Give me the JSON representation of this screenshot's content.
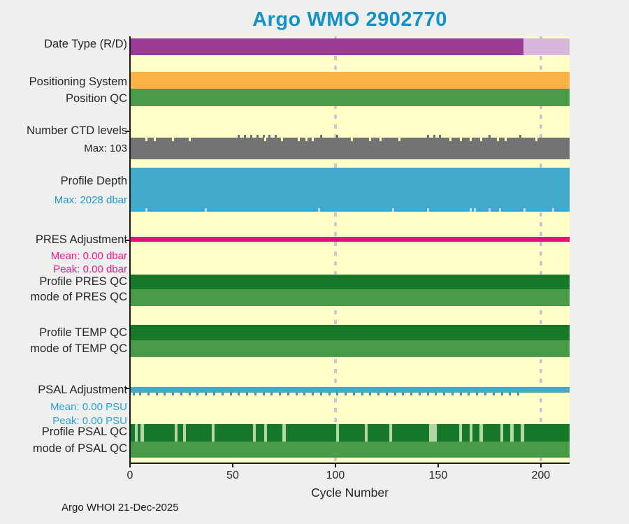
{
  "title": {
    "text": "Argo WMO 2902770",
    "color": "#1492c8"
  },
  "footer": {
    "text": "Argo WHOI 21-Dec-2025"
  },
  "chart_data": {
    "type": "status-timeline",
    "title": "Argo WMO 2902770",
    "xlabel": "Cycle Number",
    "xlim": [
      0,
      214
    ],
    "xticks": [
      0,
      50,
      100,
      150,
      200
    ],
    "gridlines_x": [
      100,
      200
    ],
    "grid_color": "#c9c9d1",
    "plot_bg": "#ffffc8",
    "axis_color": "#1a1a1a",
    "rows": [
      {
        "id": "date_type",
        "label": "Date Type (R/D)",
        "kind": "segments",
        "segments": [
          {
            "from": 0,
            "to": 191.5,
            "color": "#9c3a98"
          },
          {
            "from": 191.5,
            "to": 214,
            "color": "#d9b6dc"
          }
        ]
      },
      {
        "id": "positioning_system",
        "label": "Positioning System",
        "kind": "band",
        "color": "#fbb343"
      },
      {
        "id": "position_qc",
        "label": "Position QC",
        "kind": "band",
        "color": "#4a9a47"
      },
      {
        "id": "ctd_levels",
        "label": "Number CTD levels",
        "sublabel": {
          "text": "Max: 103",
          "color": "#262626"
        },
        "kind": "band",
        "color": "#737373",
        "notch_edge": "top",
        "notch_color": "#ffffc8",
        "notch_cycles": [
          8,
          12,
          21,
          29,
          66,
          74,
          82,
          86,
          89,
          108,
          117,
          122,
          131,
          156,
          161,
          166,
          171,
          179,
          183,
          198
        ],
        "nub_cycles": [
          53,
          56,
          59,
          62,
          65,
          68,
          71,
          93,
          101,
          145,
          148,
          151,
          175,
          190
        ]
      },
      {
        "id": "profile_depth",
        "label": "Profile Depth",
        "sublabel": {
          "text": "Max: 2028 dbar",
          "color": "#2095c9"
        },
        "kind": "band",
        "color": "#43a9c9",
        "notch_edge": "bottom",
        "notch_color": "#b8dcea",
        "notch_cycles": [
          8,
          37,
          92,
          128,
          145,
          166,
          168,
          175,
          180,
          192,
          206
        ]
      },
      {
        "id": "pres_adjustment",
        "label": "PRES Adjustment",
        "sublabels": [
          {
            "text": "Mean: 0.00 dbar",
            "color": "#ed168d"
          },
          {
            "text": "Peak: 0.00 dbar",
            "color": "#ed168d"
          }
        ],
        "kind": "line",
        "color": "#ec0e72"
      },
      {
        "id": "profile_pres_qc",
        "label": "Profile PRES QC",
        "kind": "band",
        "color": "#17782a"
      },
      {
        "id": "mode_pres_qc",
        "label": "mode of PRES QC",
        "kind": "band",
        "color": "#4a9a47"
      },
      {
        "id": "profile_temp_qc",
        "label": "Profile TEMP QC",
        "kind": "band",
        "color": "#17782a"
      },
      {
        "id": "mode_temp_qc",
        "label": "mode of TEMP QC",
        "kind": "band",
        "color": "#4a9a47"
      },
      {
        "id": "psal_adjustment",
        "label": "PSAL Adjustment",
        "sublabels": [
          {
            "text": "Mean: 0.00 PSU",
            "color": "#2ba0d8"
          },
          {
            "text": "Peak: 0.00 PSU",
            "color": "#2ba0d8"
          }
        ],
        "kind": "line",
        "color": "#43a9c9",
        "tick_color": "#3b93b5",
        "tick_cycles": [
          2,
          5,
          9,
          13,
          17,
          21,
          25,
          29,
          33,
          37,
          41,
          45,
          49,
          53,
          57,
          61,
          65,
          69,
          73,
          77,
          81,
          85,
          89,
          93,
          97,
          101,
          105,
          109,
          113,
          117,
          121,
          125,
          129,
          133,
          137,
          141,
          145,
          149,
          153,
          157,
          161,
          165,
          169,
          173,
          177,
          181,
          185,
          189
        ]
      },
      {
        "id": "profile_psal_qc",
        "label": "Profile PSAL QC",
        "kind": "band",
        "color": "#17782a",
        "stripe_color": "#b5d6a5",
        "stripes": [
          {
            "at": 3,
            "w": 1.5
          },
          {
            "at": 6,
            "w": 1.5
          },
          {
            "at": 22.5,
            "w": 1.5
          },
          {
            "at": 26.5,
            "w": 1.5
          },
          {
            "at": 40.5,
            "w": 1.5
          },
          {
            "at": 60.5,
            "w": 1.5
          },
          {
            "at": 66,
            "w": 1.5
          },
          {
            "at": 75,
            "w": 1.5
          },
          {
            "at": 101,
            "w": 1.5
          },
          {
            "at": 115,
            "w": 1.5
          },
          {
            "at": 127,
            "w": 1.5
          },
          {
            "at": 147.5,
            "w": 3.5
          },
          {
            "at": 161,
            "w": 1.5
          },
          {
            "at": 166,
            "w": 1.5
          },
          {
            "at": 171,
            "w": 1.5
          },
          {
            "at": 181,
            "w": 1.5
          },
          {
            "at": 186,
            "w": 1.5
          },
          {
            "at": 191,
            "w": 1.5
          }
        ]
      },
      {
        "id": "mode_psal_qc",
        "label": "mode of PSAL QC",
        "kind": "band",
        "color": "#4a9a47"
      }
    ]
  }
}
